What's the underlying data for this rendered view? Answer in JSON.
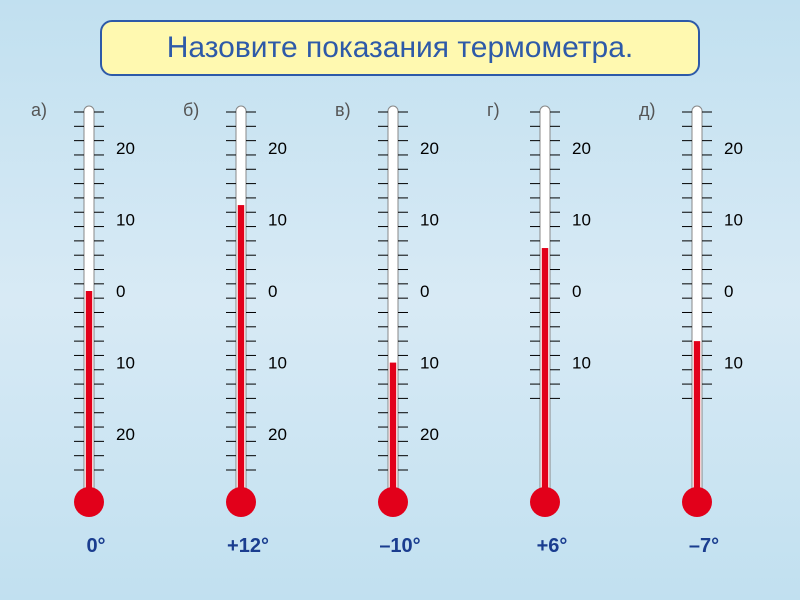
{
  "title": {
    "text": "Назовите показания термометра.",
    "background": "#fff9b0",
    "border": "#2e5aa8",
    "color": "#2e5aa8",
    "fontsize": 30
  },
  "global": {
    "mercury_color": "#e2001a",
    "tick_color": "#000000",
    "tube_border": "#888888",
    "tube_fill": "#ffffff",
    "label_color": "#000000",
    "letter_color": "#555555",
    "answer_color": "#1a3d8f",
    "scale_min": -25,
    "scale_max": 25,
    "major_step": 10,
    "minor_step": 2
  },
  "thermometers": [
    {
      "letter": "а)",
      "reading": 0,
      "answer": "0°",
      "labels": [
        "20",
        "10",
        "0",
        "10",
        "20"
      ]
    },
    {
      "letter": "б)",
      "reading": 12,
      "answer": "+12°",
      "labels": [
        "20",
        "10",
        "0",
        "10",
        "20"
      ]
    },
    {
      "letter": "в)",
      "reading": -10,
      "answer": "–10°",
      "labels": [
        "20",
        "10",
        "0",
        "10",
        "20"
      ]
    },
    {
      "letter": "г)",
      "reading": 6,
      "answer": "+6°",
      "labels": [
        "20",
        "10",
        "0",
        "10"
      ]
    },
    {
      "letter": "д)",
      "reading": -7,
      "answer": "–7°",
      "labels": [
        "20",
        "10",
        "0",
        "10"
      ]
    }
  ]
}
